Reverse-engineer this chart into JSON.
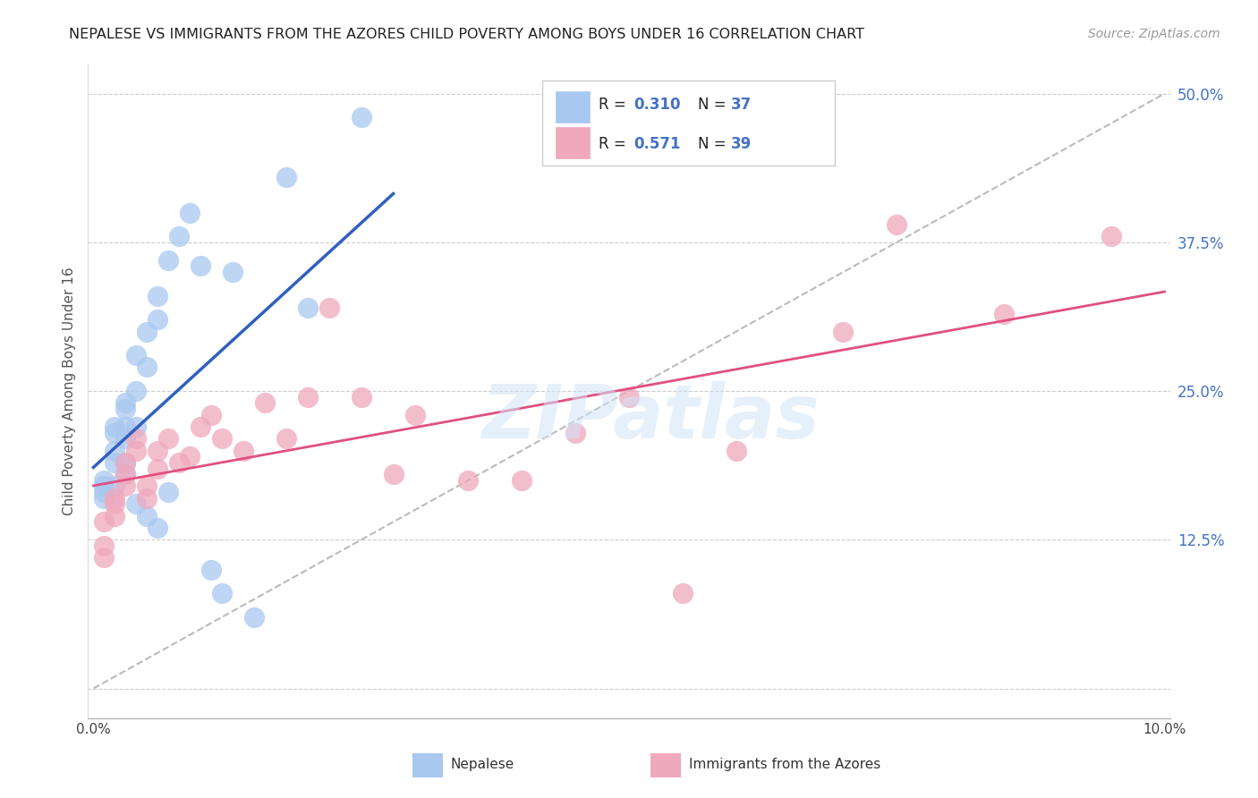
{
  "title": "NEPALESE VS IMMIGRANTS FROM THE AZORES CHILD POVERTY AMONG BOYS UNDER 16 CORRELATION CHART",
  "source": "Source: ZipAtlas.com",
  "ylabel": "Child Poverty Among Boys Under 16",
  "color_blue": "#A8C8F0",
  "color_pink": "#F0A8BC",
  "color_blue_line": "#3060C0",
  "color_pink_line": "#E05080",
  "color_diag": "#AAAAAA",
  "watermark_color": "#D0E4F8",
  "legend_R1": "0.310",
  "legend_N1": "37",
  "legend_R2": "0.571",
  "legend_N2": "39",
  "nepalese_x": [
    0.001,
    0.001,
    0.001,
    0.002,
    0.002,
    0.002,
    0.002,
    0.003,
    0.003,
    0.003,
    0.003,
    0.004,
    0.004,
    0.004,
    0.005,
    0.005,
    0.006,
    0.006,
    0.007,
    0.008,
    0.009,
    0.01,
    0.011,
    0.012,
    0.013,
    0.015,
    0.018,
    0.02,
    0.025,
    0.003,
    0.002,
    0.001,
    0.003,
    0.004,
    0.005,
    0.006,
    0.007
  ],
  "nepalese_y": [
    0.175,
    0.17,
    0.165,
    0.22,
    0.215,
    0.2,
    0.19,
    0.24,
    0.235,
    0.22,
    0.21,
    0.28,
    0.25,
    0.22,
    0.3,
    0.27,
    0.33,
    0.31,
    0.36,
    0.38,
    0.4,
    0.355,
    0.1,
    0.08,
    0.35,
    0.06,
    0.43,
    0.32,
    0.48,
    0.18,
    0.17,
    0.16,
    0.19,
    0.155,
    0.145,
    0.135,
    0.165
  ],
  "azores_x": [
    0.001,
    0.001,
    0.001,
    0.002,
    0.002,
    0.002,
    0.003,
    0.003,
    0.003,
    0.004,
    0.004,
    0.005,
    0.005,
    0.006,
    0.006,
    0.007,
    0.008,
    0.009,
    0.01,
    0.011,
    0.012,
    0.014,
    0.016,
    0.018,
    0.02,
    0.022,
    0.025,
    0.028,
    0.03,
    0.035,
    0.04,
    0.045,
    0.05,
    0.055,
    0.06,
    0.07,
    0.075,
    0.085,
    0.095
  ],
  "azores_y": [
    0.14,
    0.12,
    0.11,
    0.16,
    0.155,
    0.145,
    0.19,
    0.18,
    0.17,
    0.21,
    0.2,
    0.17,
    0.16,
    0.2,
    0.185,
    0.21,
    0.19,
    0.195,
    0.22,
    0.23,
    0.21,
    0.2,
    0.24,
    0.21,
    0.245,
    0.32,
    0.245,
    0.18,
    0.23,
    0.175,
    0.175,
    0.215,
    0.245,
    0.08,
    0.2,
    0.3,
    0.39,
    0.315,
    0.38
  ],
  "xlim": [
    0.0,
    0.1
  ],
  "ylim": [
    0.0,
    0.5
  ],
  "yticks": [
    0.0,
    0.125,
    0.25,
    0.375,
    0.5
  ],
  "ytick_labels_right": [
    "",
    "12.5%",
    "25.0%",
    "37.5%",
    "50.0%"
  ],
  "xtick_vals": [
    0.0,
    0.01,
    0.02,
    0.03,
    0.04,
    0.05,
    0.06,
    0.07,
    0.08,
    0.09,
    0.1
  ],
  "xtick_labels": [
    "0.0%",
    "",
    "",
    "",
    "",
    "",
    "",
    "",
    "",
    "",
    "10.0%"
  ]
}
